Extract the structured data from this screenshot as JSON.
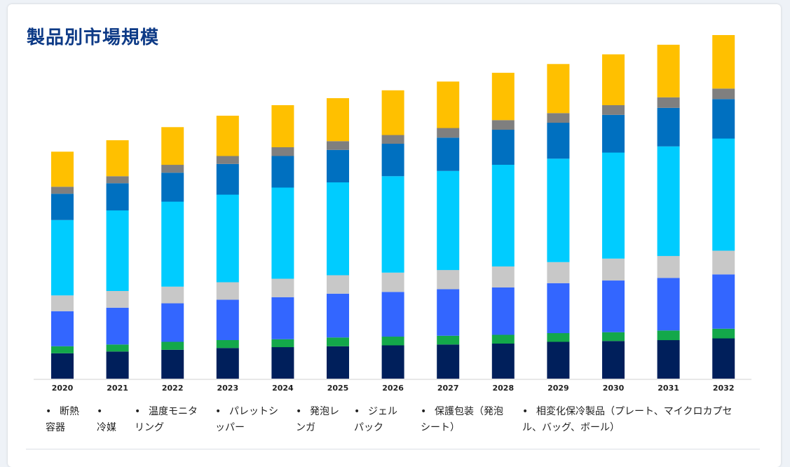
{
  "title": "製品別市場規模",
  "colors": {
    "series": [
      "#001f5b",
      "#13a84a",
      "#3366ff",
      "#c8c8c8",
      "#00ccff",
      "#0070c0",
      "#7f7f7f",
      "#ffc000"
    ]
  },
  "chart_data": {
    "type": "bar",
    "stacked": true,
    "categories": [
      "2020",
      "2021",
      "2022",
      "2023",
      "2024",
      "2025",
      "2026",
      "2027",
      "2028",
      "2029",
      "2030",
      "2031",
      "2032"
    ],
    "series": [
      {
        "name": "断熱容器",
        "values": [
          29,
          31,
          33,
          35,
          36,
          37,
          38,
          39,
          40,
          42,
          43,
          44,
          46
        ]
      },
      {
        "name": "冷媒",
        "values": [
          8,
          8,
          9,
          9,
          9,
          10,
          10,
          10,
          10,
          10,
          10,
          11,
          11
        ]
      },
      {
        "name": "温度モニタリング",
        "values": [
          40,
          42,
          44,
          46,
          48,
          50,
          51,
          53,
          54,
          57,
          59,
          60,
          62
        ]
      },
      {
        "name": "パレットシッパー",
        "values": [
          18,
          19,
          19,
          20,
          21,
          21,
          22,
          22,
          24,
          24,
          25,
          25,
          27
        ]
      },
      {
        "name": "発泡レンガ",
        "values": [
          86,
          92,
          97,
          100,
          104,
          106,
          110,
          113,
          116,
          118,
          121,
          125,
          128
        ]
      },
      {
        "name": "ジェルパック",
        "values": [
          30,
          31,
          33,
          35,
          36,
          37,
          37,
          38,
          40,
          41,
          43,
          44,
          45
        ]
      },
      {
        "name": "保護包装（発泡シート）",
        "values": [
          8,
          8,
          9,
          9,
          10,
          10,
          10,
          11,
          11,
          11,
          11,
          12,
          12
        ]
      },
      {
        "name": "相変化保冷製品（プレート、マイクロカプセル、バッグ、ボール）",
        "values": [
          40,
          41,
          43,
          46,
          48,
          49,
          51,
          53,
          54,
          56,
          58,
          60,
          61
        ]
      }
    ],
    "xlabel": "",
    "ylabel": "",
    "ylim": [
      0,
      400
    ],
    "grid": false,
    "legend": "bottom"
  },
  "legend_labels": [
    [
      "断熱",
      "容器"
    ],
    [
      "",
      "冷媒"
    ],
    [
      "温度モニタ",
      "リング"
    ],
    [
      "パレットシ",
      "ッパー"
    ],
    [
      "発泡レ",
      "ンガ"
    ],
    [
      "ジェル",
      "パック"
    ],
    [
      "保護包装（発泡",
      "シート）"
    ],
    [
      "相変化保冷製品（プレート、マイクロカプセ",
      "ル、バッグ、ボール）"
    ]
  ],
  "bullet": "•"
}
